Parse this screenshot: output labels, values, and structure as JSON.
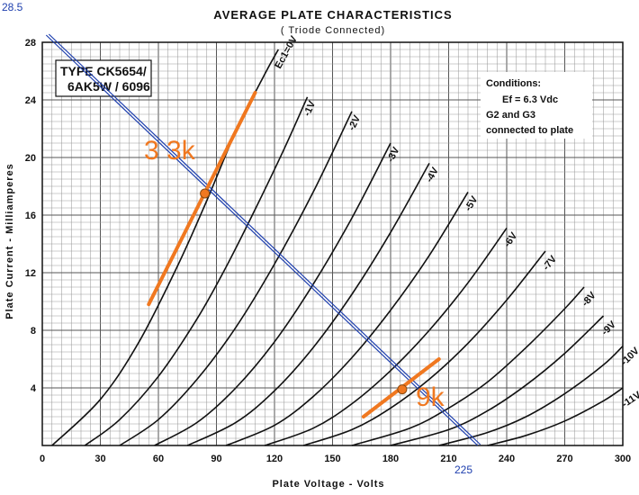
{
  "chart_data": {
    "type": "line",
    "title": "AVERAGE PLATE CHARACTERISTICS",
    "subtitle": "( Triode Connected)",
    "xlabel": "Plate Voltage - Volts",
    "ylabel": "Plate Current - Milliamperes",
    "xlim": [
      0,
      300
    ],
    "ylim": [
      0,
      28
    ],
    "x_ticks": [
      "0",
      "30",
      "60",
      "90",
      "120",
      "150",
      "180",
      "210",
      "240",
      "270",
      "300"
    ],
    "y_ticks": [
      "4",
      "8",
      "12",
      "16",
      "20",
      "24",
      "28"
    ],
    "grid": true,
    "type_box": [
      "TYPE CK5654/",
      "6AK5W / 6096"
    ],
    "conditions": [
      "Conditions:",
      "Ef = 6.3 Vdc",
      "G2 and G3",
      "connected to plate"
    ],
    "series": [
      {
        "name": "Ec1=0V",
        "x": [
          5,
          30,
          50,
          70,
          85,
          100,
          115,
          122
        ],
        "y": [
          0,
          3.2,
          7.2,
          12.5,
          17,
          21.8,
          25.8,
          27.5
        ]
      },
      {
        "name": "-1V",
        "x": [
          22,
          40,
          60,
          80,
          95,
          110,
          125,
          137
        ],
        "y": [
          0,
          1.8,
          4.8,
          8.8,
          12.4,
          16.4,
          20.6,
          24.2
        ]
      },
      {
        "name": "-2V",
        "x": [
          40,
          60,
          80,
          100,
          120,
          140,
          160
        ],
        "y": [
          0,
          1.8,
          4.6,
          8.2,
          12.6,
          17.6,
          23.2
        ]
      },
      {
        "name": "-3V",
        "x": [
          58,
          80,
          100,
          120,
          140,
          160,
          180
        ],
        "y": [
          0,
          1.6,
          4,
          7.2,
          11.2,
          15.8,
          21
        ]
      },
      {
        "name": "-4V",
        "x": [
          75,
          100,
          120,
          140,
          160,
          180,
          200
        ],
        "y": [
          0,
          1.6,
          3.8,
          6.8,
          10.5,
          14.8,
          19.6
        ]
      },
      {
        "name": "-5V",
        "x": [
          95,
          120,
          140,
          160,
          180,
          200,
          220
        ],
        "y": [
          0,
          1.4,
          3.4,
          6.1,
          9.4,
          13.2,
          17.6
        ]
      },
      {
        "name": "-6V",
        "x": [
          115,
          140,
          160,
          180,
          200,
          220,
          240
        ],
        "y": [
          0,
          1.2,
          2.9,
          5.2,
          8,
          11.3,
          15.1
        ]
      },
      {
        "name": "-7V",
        "x": [
          135,
          160,
          180,
          200,
          220,
          240,
          260
        ],
        "y": [
          0,
          1.1,
          2.6,
          4.6,
          7.1,
          10.1,
          13.5
        ]
      },
      {
        "name": "-8V",
        "x": [
          160,
          190,
          210,
          230,
          250,
          270,
          280
        ],
        "y": [
          0,
          1.2,
          2.6,
          4.4,
          6.8,
          9.5,
          11
        ]
      },
      {
        "name": "-9V",
        "x": [
          180,
          210,
          230,
          250,
          270,
          290
        ],
        "y": [
          0,
          1.1,
          2.4,
          4.2,
          6.4,
          9
        ]
      },
      {
        "name": "-10V",
        "x": [
          205,
          230,
          250,
          270,
          290,
          300
        ],
        "y": [
          0,
          0.9,
          2,
          3.6,
          5.6,
          6.9
        ]
      },
      {
        "name": "-11V",
        "x": [
          230,
          250,
          270,
          290,
          300
        ],
        "y": [
          0,
          0.7,
          1.7,
          3.1,
          4
        ]
      }
    ],
    "annotations": {
      "load_line": {
        "x": [
          2,
          225
        ],
        "y": [
          28.5,
          0
        ],
        "label_start": "28.5",
        "label_end": "225"
      },
      "bias_3_3k": {
        "x": [
          55,
          110
        ],
        "y": [
          9.8,
          24.5
        ],
        "marker": [
          84,
          17.5
        ],
        "label": "3 3k"
      },
      "bias_9k": {
        "x": [
          166,
          205
        ],
        "y": [
          2,
          6
        ],
        "marker": [
          186,
          3.9
        ],
        "label": "9k"
      }
    }
  }
}
